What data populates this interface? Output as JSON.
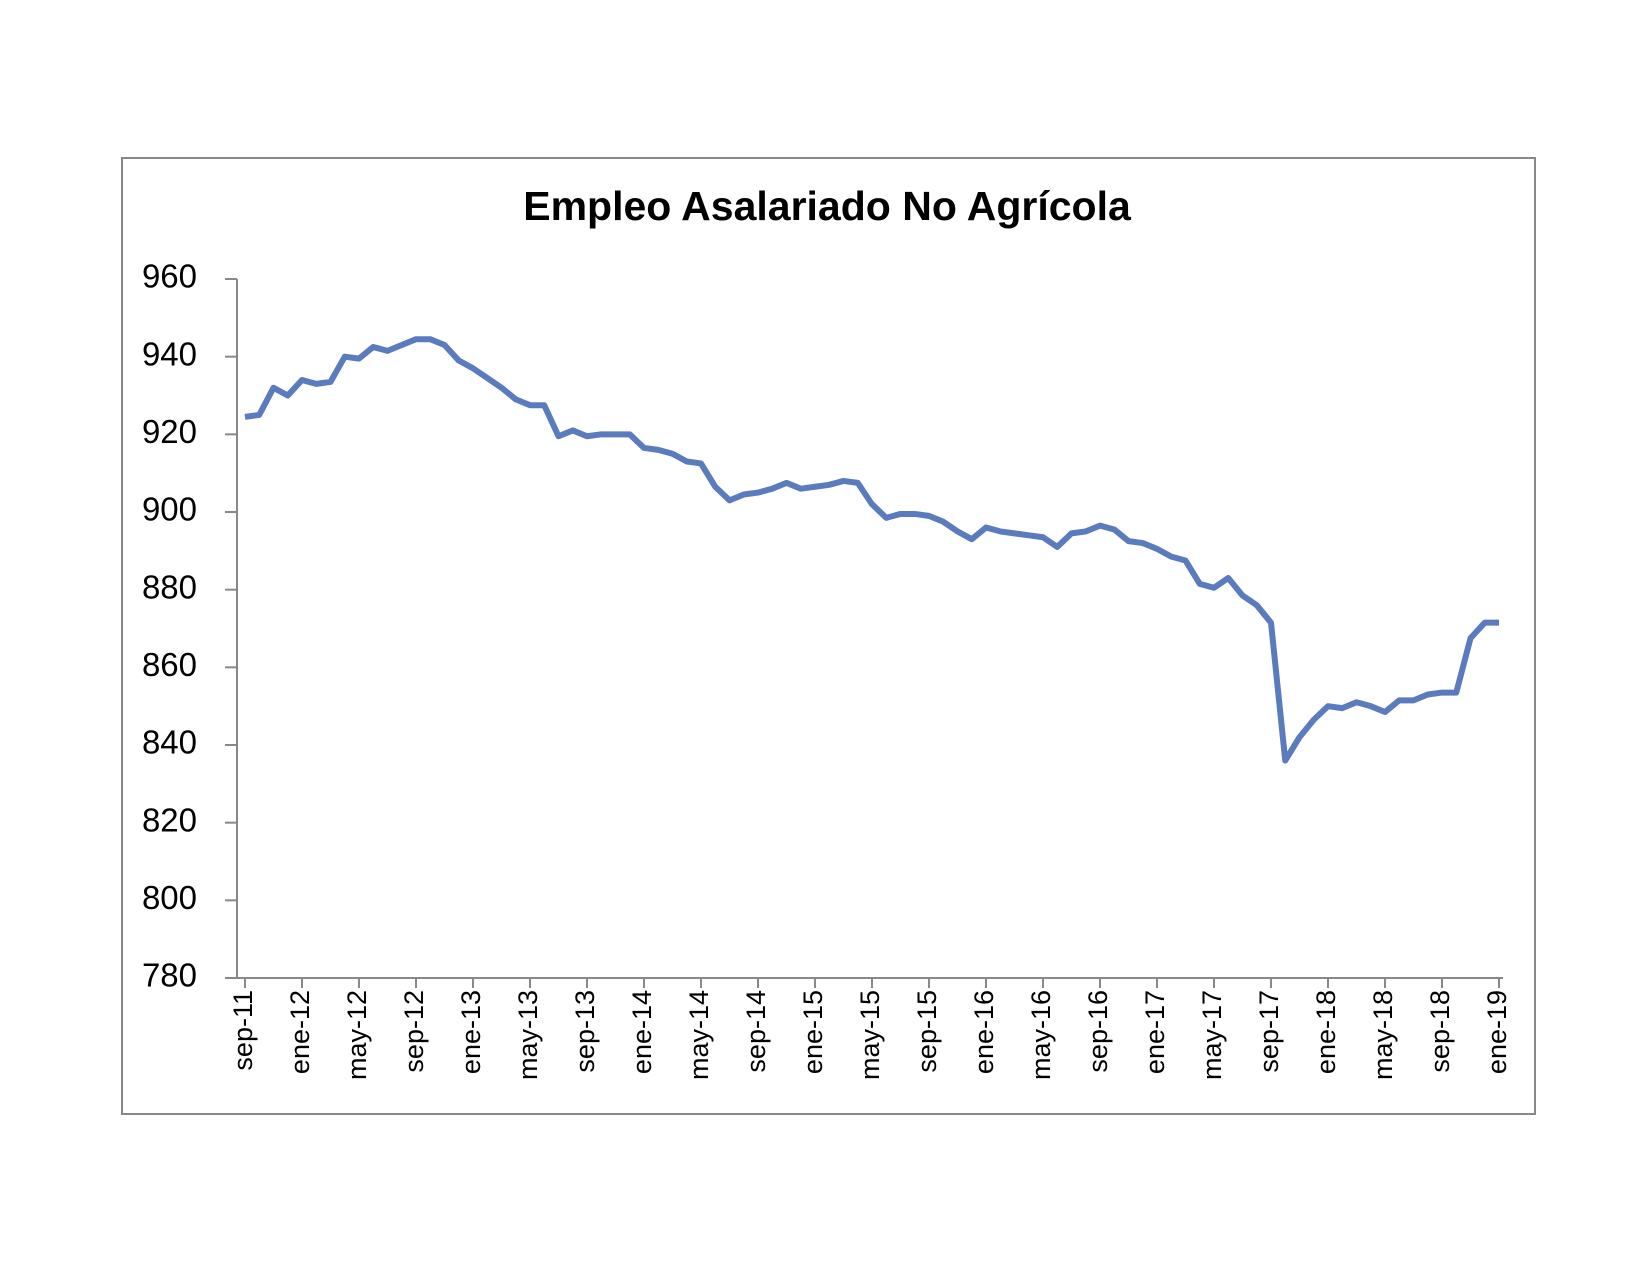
{
  "chart_data": {
    "type": "line",
    "title": "Empleo Asalariado No Agrícola",
    "categories": [
      "sep-11",
      null,
      null,
      null,
      "ene-12",
      null,
      null,
      null,
      "may-12",
      null,
      null,
      null,
      "sep-12",
      null,
      null,
      null,
      "ene-13",
      null,
      null,
      null,
      "may-13",
      null,
      null,
      null,
      "sep-13",
      null,
      null,
      null,
      "ene-14",
      null,
      null,
      null,
      "may-14",
      null,
      null,
      null,
      "sep-14",
      null,
      null,
      null,
      "ene-15",
      null,
      null,
      null,
      "may-15",
      null,
      null,
      null,
      "sep-15",
      null,
      null,
      null,
      "ene-16",
      null,
      null,
      null,
      "may-16",
      null,
      null,
      null,
      "sep-16",
      null,
      null,
      null,
      "ene-17",
      null,
      null,
      null,
      "may-17",
      null,
      null,
      null,
      "sep-17",
      null,
      null,
      null,
      "ene-18",
      null,
      null,
      null,
      "may-18",
      null,
      null,
      null,
      "sep-18",
      null,
      null,
      null,
      "ene-19"
    ],
    "series": [
      {
        "color": "#5b7bbf",
        "values": [
          924.5,
          925,
          932,
          930,
          934,
          933,
          933.5,
          940,
          939.5,
          942.5,
          941.5,
          943,
          944.5,
          944.5,
          943,
          939,
          937,
          934.5,
          932,
          929,
          927.5,
          927.5,
          919.5,
          921,
          919.5,
          920,
          920,
          920,
          916.5,
          916,
          915,
          913,
          912.5,
          906.5,
          903,
          904.5,
          905,
          906,
          907.5,
          906,
          906.5,
          907,
          908,
          907.5,
          902,
          898.5,
          899.5,
          899.5,
          899,
          897.5,
          895,
          893,
          896,
          895,
          894.5,
          894,
          893.5,
          891,
          894.5,
          895,
          896.5,
          895.5,
          892.5,
          892,
          890.5,
          888.5,
          887.5,
          881.5,
          880.5,
          883,
          878.5,
          876,
          871.5,
          836,
          842,
          846.5,
          850,
          849.5,
          851,
          850,
          848.5,
          851.5,
          851.5,
          853,
          853.5,
          853.5,
          867.5,
          871.5,
          871.5
        ]
      }
    ],
    "ylim": [
      780,
      960
    ],
    "yticks": [
      780,
      800,
      820,
      840,
      860,
      880,
      900,
      920,
      940,
      960
    ]
  }
}
